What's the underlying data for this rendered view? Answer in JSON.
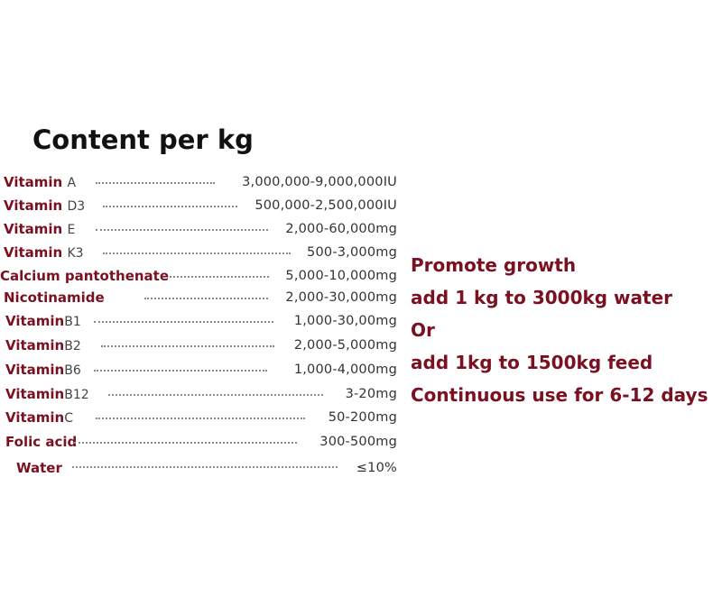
{
  "title": "Content per kg",
  "rows": [
    {
      "name": "Vitamin",
      "sub": "A",
      "amount": "3,000,000-9,000,000IU"
    },
    {
      "name": "Vitamin",
      "sub": "D3",
      "amount": "500,000-2,500,000IU"
    },
    {
      "name": "Vitamin",
      "sub": "E",
      "amount": "2,000-60,000mg"
    },
    {
      "name": "Vitamin",
      "sub": "K3",
      "amount": "500-3,000mg"
    },
    {
      "name": "Calcium pantothenate",
      "sub": "",
      "amount": "5,000-10,000mg"
    },
    {
      "name": "Nicotinamide",
      "sub": "",
      "amount": "2,000-30,000mg"
    },
    {
      "name": "Vitamin",
      "sub": "B1",
      "amount": "1,000-30,00mg"
    },
    {
      "name": "Vitamin",
      "sub": "B2",
      "amount": "2,000-5,000mg"
    },
    {
      "name": "Vitamin",
      "sub": "B6",
      "amount": "1,000-4,000mg"
    },
    {
      "name": "Vitamin",
      "sub": "B12",
      "amount": "3-20mg"
    },
    {
      "name": "Vitamin",
      "sub": "C",
      "amount": "50-200mg"
    },
    {
      "name": "Folic acid",
      "sub": "",
      "amount": "300-500mg"
    },
    {
      "name": "Water",
      "sub": "",
      "amount": "≤10%"
    }
  ],
  "usage": [
    "Promote growth",
    "add 1 kg to 3000kg water",
    "Or",
    "add 1kg to 1500kg feed",
    "Continuous use for 6-12 days"
  ],
  "colors": {
    "label": "#7a1020",
    "title": "#111111",
    "amount": "#333333"
  }
}
